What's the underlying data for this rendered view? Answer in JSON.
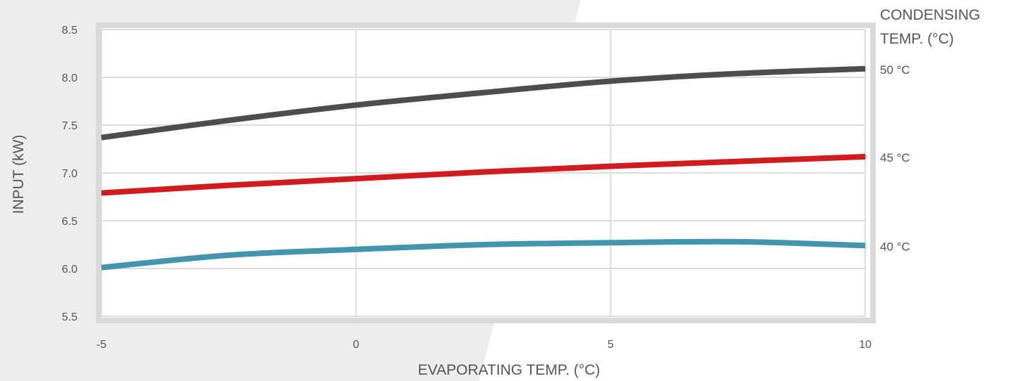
{
  "chart_data": {
    "type": "line",
    "xlabel": "EVAPORATING TEMP. (°C)",
    "ylabel": "INPUT (kW)",
    "legend_title_lines": [
      "CONDENSING",
      "TEMP. (°C)"
    ],
    "xlim": [
      -5,
      10
    ],
    "ylim": [
      5.5,
      8.5
    ],
    "x_ticks": [
      "-5",
      "0",
      "5",
      "10"
    ],
    "y_ticks": [
      "5.5",
      "6.0",
      "6.5",
      "7.0",
      "7.5",
      "8.0",
      "8.5"
    ],
    "grid": true,
    "legend_position": "right",
    "series": [
      {
        "name": "50 °C",
        "color": "#4d4d4d",
        "x": [
          -5,
          -2.5,
          0,
          2.5,
          5,
          7.5,
          10
        ],
        "y": [
          7.37,
          7.55,
          7.71,
          7.84,
          7.96,
          8.04,
          8.09
        ]
      },
      {
        "name": "45 °C",
        "color": "#d01c1f",
        "x": [
          -5,
          -2.5,
          0,
          2.5,
          5,
          7.5,
          10
        ],
        "y": [
          6.79,
          6.87,
          6.94,
          7.01,
          7.07,
          7.12,
          7.17
        ]
      },
      {
        "name": "40 °C",
        "color": "#4395ad",
        "x": [
          -5,
          -2.5,
          0,
          2.5,
          5,
          7.5,
          10
        ],
        "y": [
          6.01,
          6.14,
          6.2,
          6.25,
          6.27,
          6.28,
          6.24
        ]
      }
    ]
  }
}
